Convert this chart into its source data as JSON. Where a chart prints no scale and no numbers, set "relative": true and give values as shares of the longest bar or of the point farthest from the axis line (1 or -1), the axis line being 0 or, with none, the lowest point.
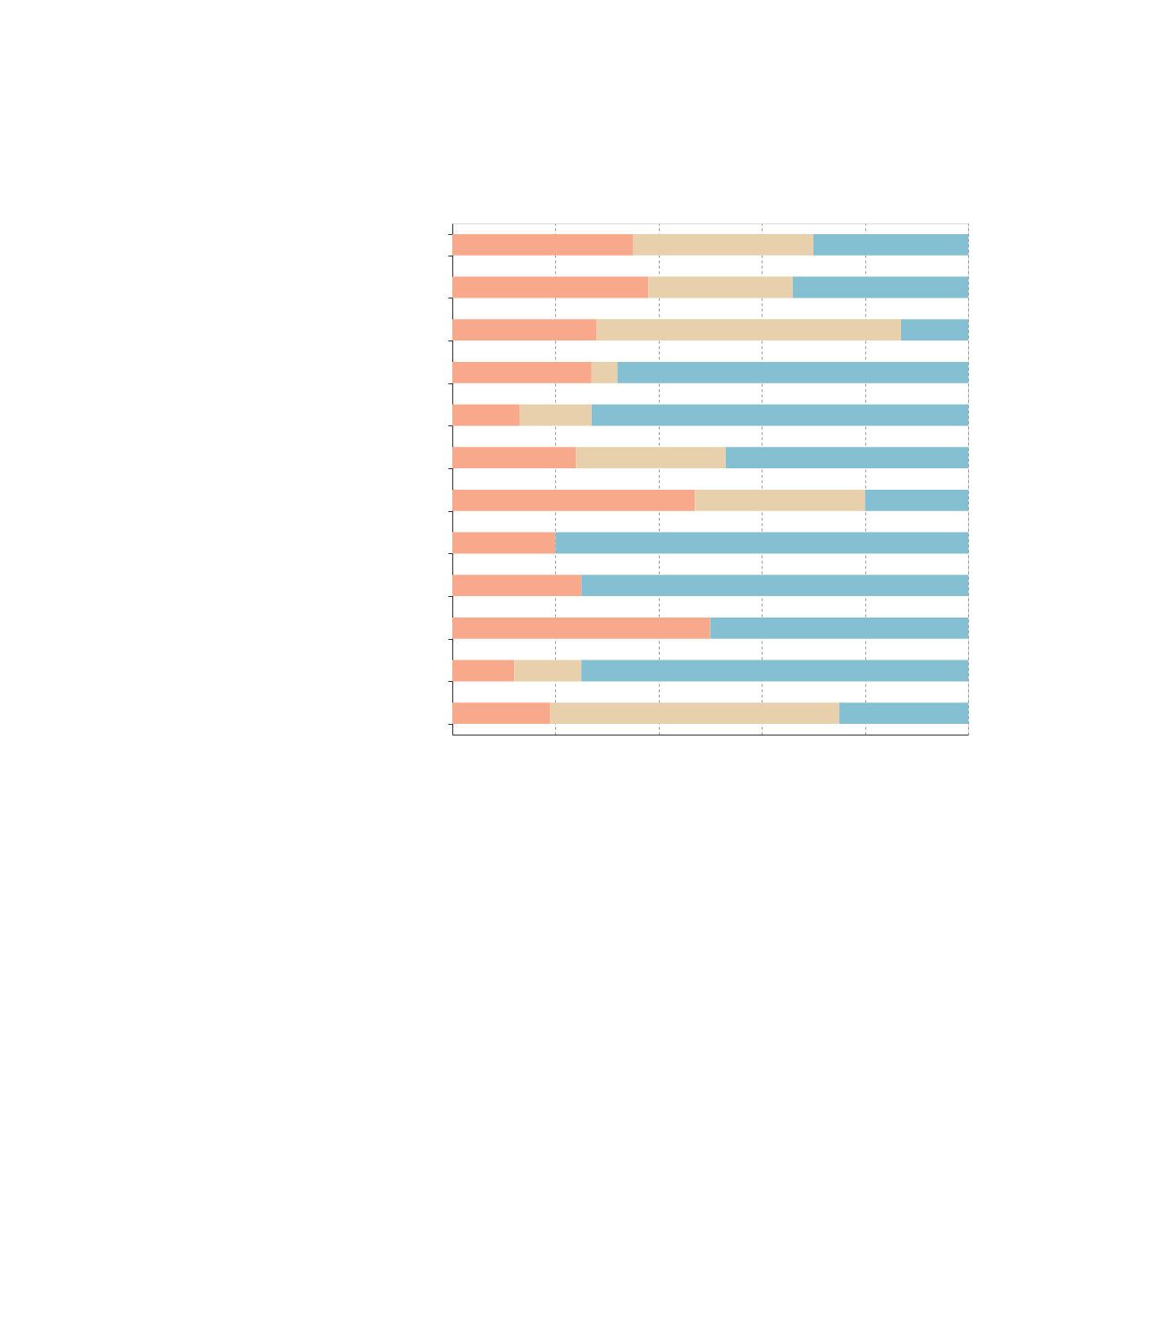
{
  "chart_data": {
    "type": "bar",
    "orientation": "horizontal",
    "stacked": true,
    "relative": true,
    "categories": [
      null,
      null,
      null,
      null,
      null,
      null,
      null,
      null,
      null,
      null,
      null,
      null
    ],
    "series": [
      {
        "color": "#f8a98b",
        "values": [
          0.35,
          0.38,
          0.28,
          0.27,
          0.13,
          0.24,
          0.47,
          0.2,
          0.25,
          0.5,
          0.12,
          0.19
        ]
      },
      {
        "color": "#e8d0ac",
        "values": [
          0.35,
          0.28,
          0.59,
          0.05,
          0.14,
          0.29,
          0.33,
          0,
          0,
          0,
          0.13,
          0.56
        ]
      },
      {
        "color": "#85bfd2",
        "values": [
          0.3,
          0.34,
          0.13,
          0.68,
          0.73,
          0.47,
          0.2,
          0.8,
          0.75,
          0.5,
          0.75,
          0.25
        ]
      }
    ],
    "grid": "x",
    "tick_labels": false
  }
}
